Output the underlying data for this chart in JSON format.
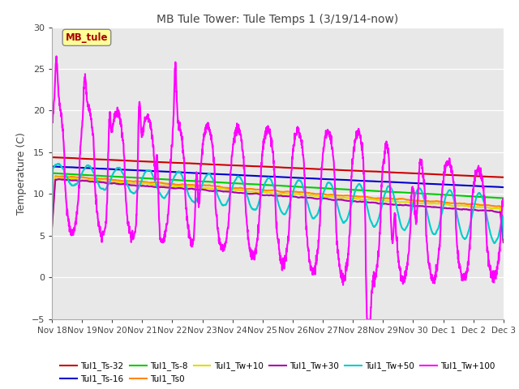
{
  "title": "MB Tule Tower: Tule Temps 1 (3/19/14-now)",
  "ylabel": "Temperature (C)",
  "ylim": [
    -5,
    30
  ],
  "yticks": [
    -5,
    0,
    5,
    10,
    15,
    20,
    25,
    30
  ],
  "xlim": [
    0,
    15
  ],
  "xtick_labels": [
    "Nov 18",
    "Nov 19",
    "Nov 20",
    "Nov 21",
    "Nov 22",
    "Nov 23",
    "Nov 24",
    "Nov 25",
    "Nov 26",
    "Nov 27",
    "Nov 28",
    "Nov 29",
    "Nov 30",
    "Dec 1",
    "Dec 2",
    "Dec 3"
  ],
  "series": [
    {
      "label": "Tul1_Ts-32",
      "color": "#cc0000",
      "lw": 1.5
    },
    {
      "label": "Tul1_Ts-16",
      "color": "#0000cc",
      "lw": 1.5
    },
    {
      "label": "Tul1_Ts-8",
      "color": "#00cc00",
      "lw": 1.5
    },
    {
      "label": "Tul1_Ts0",
      "color": "#ff8800",
      "lw": 1.5
    },
    {
      "label": "Tul1_Tw+10",
      "color": "#dddd00",
      "lw": 1.5
    },
    {
      "label": "Tul1_Tw+30",
      "color": "#aa00aa",
      "lw": 1.5
    },
    {
      "label": "Tul1_Tw+50",
      "color": "#00cccc",
      "lw": 1.5
    },
    {
      "label": "Tul1_Tw+100",
      "color": "#ff00ff",
      "lw": 1.5
    }
  ],
  "legend_row1": [
    "Tul1_Ts-32",
    "Tul1_Ts-16",
    "Tul1_Ts-8",
    "Tul1_Ts0",
    "Tul1_Tw+10",
    "Tul1_Tw+30"
  ],
  "legend_row2": [
    "Tul1_Tw+50",
    "Tul1_Tw+100"
  ],
  "n_points": 2000,
  "seed": 7
}
